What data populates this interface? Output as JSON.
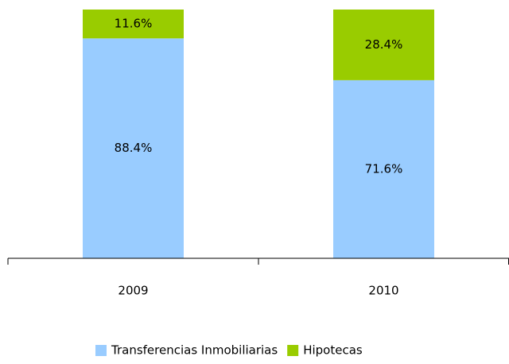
{
  "chart_data": {
    "type": "stacked_bar",
    "categories": [
      "2009",
      "2010"
    ],
    "series": [
      {
        "name": "Transferencias Inmobiliarias",
        "color": "#99ccff",
        "values": [
          88.4,
          71.6
        ],
        "value_labels": [
          "88.4%",
          "71.6%"
        ]
      },
      {
        "name": "Hipotecas",
        "color": "#99cc00",
        "values": [
          11.6,
          28.4
        ],
        "value_labels": [
          "11.6%",
          "28.4%"
        ]
      }
    ],
    "ylim": [
      0,
      100
    ]
  }
}
